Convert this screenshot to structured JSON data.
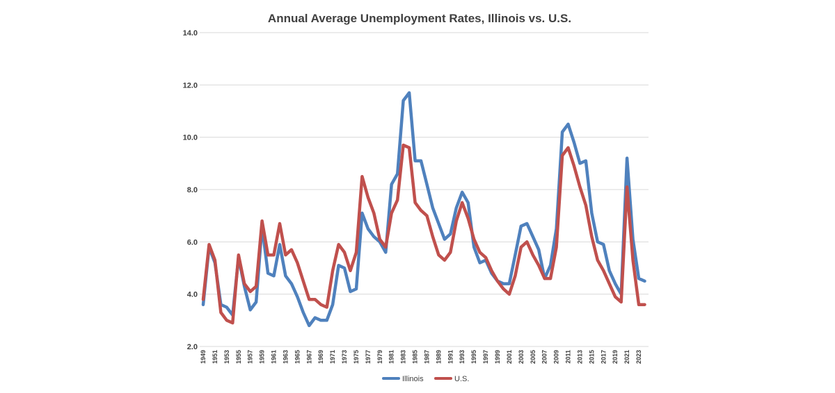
{
  "chart_data": {
    "type": "line",
    "title": "Annual Average Unemployment Rates, Illinois vs. U.S.",
    "xlabel": "",
    "ylabel": "",
    "ylim": [
      2.0,
      14.0
    ],
    "yticks": [
      "2.0",
      "4.0",
      "6.0",
      "8.0",
      "10.0",
      "12.0",
      "14.0"
    ],
    "ytick_values": [
      2,
      4,
      6,
      8,
      10,
      12,
      14
    ],
    "grid": true,
    "legend_position": "bottom",
    "x": [
      1949,
      1950,
      1951,
      1952,
      1953,
      1954,
      1955,
      1956,
      1957,
      1958,
      1959,
      1960,
      1961,
      1962,
      1963,
      1964,
      1965,
      1966,
      1967,
      1968,
      1969,
      1970,
      1971,
      1972,
      1973,
      1974,
      1975,
      1976,
      1977,
      1978,
      1979,
      1980,
      1981,
      1982,
      1983,
      1984,
      1985,
      1986,
      1987,
      1988,
      1989,
      1990,
      1991,
      1992,
      1993,
      1994,
      1995,
      1996,
      1997,
      1998,
      1999,
      2000,
      2001,
      2002,
      2003,
      2004,
      2005,
      2006,
      2007,
      2008,
      2009,
      2010,
      2011,
      2012,
      2013,
      2014,
      2015,
      2016,
      2017,
      2018,
      2019,
      2020,
      2021,
      2022,
      2023,
      2024
    ],
    "xtick_labels": [
      "1949",
      "1951",
      "1953",
      "1955",
      "1957",
      "1959",
      "1961",
      "1963",
      "1965",
      "1967",
      "1969",
      "1971",
      "1973",
      "1975",
      "1977",
      "1979",
      "1981",
      "1983",
      "1985",
      "1987",
      "1989",
      "1991",
      "1993",
      "1995",
      "1997",
      "1999",
      "2001",
      "2003",
      "2005",
      "2007",
      "2009",
      "2011",
      "2013",
      "2015",
      "2017",
      "2019",
      "2021",
      "2023"
    ],
    "series": [
      {
        "name": "Illinois",
        "color": "#4f81bd",
        "values": [
          3.6,
          5.8,
          5.2,
          3.6,
          3.5,
          3.2,
          5.4,
          4.3,
          3.4,
          3.7,
          6.6,
          4.8,
          4.7,
          5.9,
          4.7,
          4.4,
          3.9,
          3.3,
          2.8,
          3.1,
          3.0,
          3.0,
          3.6,
          5.1,
          5.0,
          4.1,
          4.2,
          7.1,
          6.5,
          6.2,
          6.0,
          5.6,
          8.2,
          8.6,
          11.4,
          11.7,
          9.1,
          9.1,
          8.2,
          7.3,
          6.7,
          6.1,
          6.3,
          7.3,
          7.9,
          7.5,
          5.8,
          5.2,
          5.3,
          4.8,
          4.5,
          4.4,
          4.4,
          5.5,
          6.6,
          6.7,
          6.2,
          5.7,
          4.6,
          5.1,
          6.5,
          10.2,
          10.5,
          9.8,
          9.0,
          9.1,
          7.1,
          6.0,
          5.9,
          4.9,
          4.4,
          4.0,
          9.2,
          6.1,
          4.6,
          4.5
        ]
      },
      {
        "name": "U.S.",
        "color": "#c0504d",
        "values": [
          3.8,
          5.9,
          5.3,
          3.3,
          3.0,
          2.9,
          5.5,
          4.4,
          4.1,
          4.3,
          6.8,
          5.5,
          5.5,
          6.7,
          5.5,
          5.7,
          5.2,
          4.5,
          3.8,
          3.8,
          3.6,
          3.5,
          4.9,
          5.9,
          5.6,
          4.9,
          5.6,
          8.5,
          7.7,
          7.1,
          6.1,
          5.8,
          7.1,
          7.6,
          9.7,
          9.6,
          7.5,
          7.2,
          7.0,
          6.2,
          5.5,
          5.3,
          5.6,
          6.8,
          7.5,
          6.9,
          6.1,
          5.6,
          5.4,
          4.9,
          4.5,
          4.2,
          4.0,
          4.7,
          5.8,
          6.0,
          5.5,
          5.1,
          4.6,
          4.6,
          5.8,
          9.3,
          9.6,
          8.9,
          8.1,
          7.4,
          6.2,
          5.3,
          4.9,
          4.4,
          3.9,
          3.7,
          8.1,
          5.3,
          3.6,
          3.6
        ]
      }
    ]
  }
}
